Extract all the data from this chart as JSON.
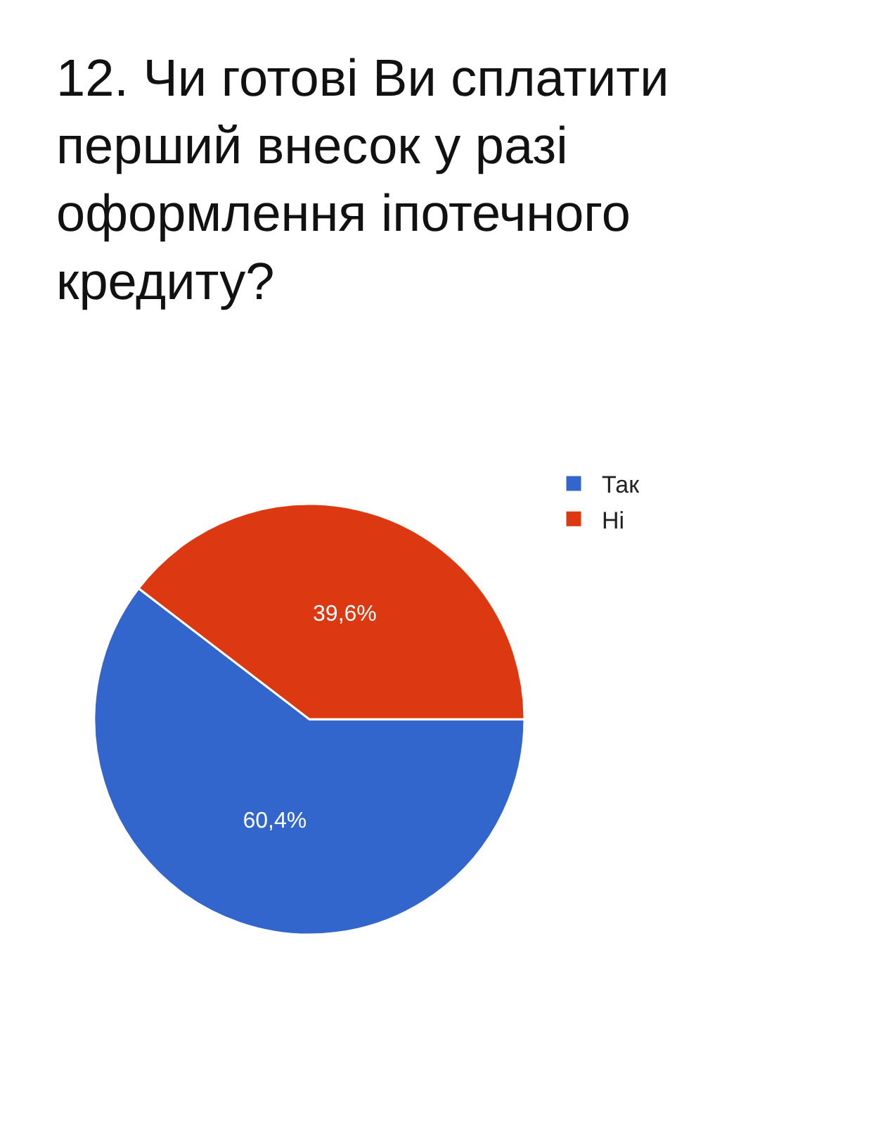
{
  "chart_data": {
    "type": "pie",
    "title": "12. Чи готові Ви сплатити перший внесок у разі оформлення іпотечного кредиту?",
    "categories": [
      "Так",
      "Ні"
    ],
    "values": [
      60.4,
      39.6
    ],
    "colors": [
      "#3366cc",
      "#dc3912"
    ],
    "value_labels": [
      "60,4%",
      "39,6%"
    ],
    "legend": "top right"
  }
}
